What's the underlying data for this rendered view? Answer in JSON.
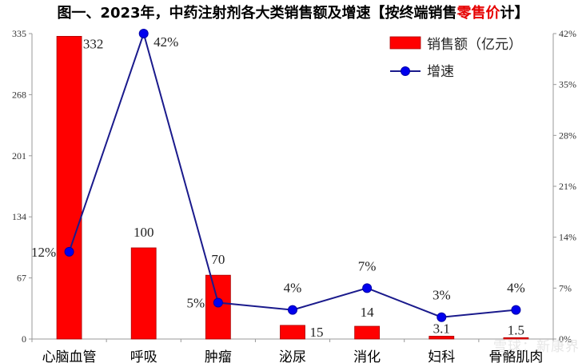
{
  "title": {
    "prefix": "图一、2023年，中药注射剂各大类销售额及增速【按终端销售",
    "highlight": "零售价",
    "suffix": "计】"
  },
  "watermark": "雪球：新康界",
  "chart_data": {
    "type": "bar+line",
    "categories": [
      "心脑血管",
      "呼吸",
      "肿瘤",
      "泌尿",
      "消化",
      "妇科",
      "骨骼肌肉"
    ],
    "series": [
      {
        "name": "销售额（亿元）",
        "type": "bar",
        "axis": "left",
        "values": [
          332,
          100,
          70,
          15,
          14,
          3.1,
          1.5
        ],
        "labels": [
          "332",
          "100",
          "70",
          "15",
          "14",
          "3.1",
          "1.5"
        ],
        "color": "#ff0000"
      },
      {
        "name": "增速",
        "type": "line",
        "axis": "right",
        "values": [
          12,
          42,
          5,
          4,
          7,
          3,
          4
        ],
        "labels": [
          "12%",
          "42%",
          "5%",
          "4%",
          "7%",
          "3%",
          "4%"
        ],
        "color": "#1a1a8c",
        "marker_color": "#0000ee"
      }
    ],
    "y_left": {
      "ylim": [
        0,
        335
      ],
      "ticks": [
        "0",
        "67",
        "134",
        "201",
        "268",
        "335"
      ]
    },
    "y_right": {
      "ylim": [
        0,
        42
      ],
      "ticks": [
        "0%",
        "7%",
        "14%",
        "21%",
        "28%",
        "35%",
        "42%"
      ]
    },
    "legend": "top-right",
    "grid": false
  }
}
